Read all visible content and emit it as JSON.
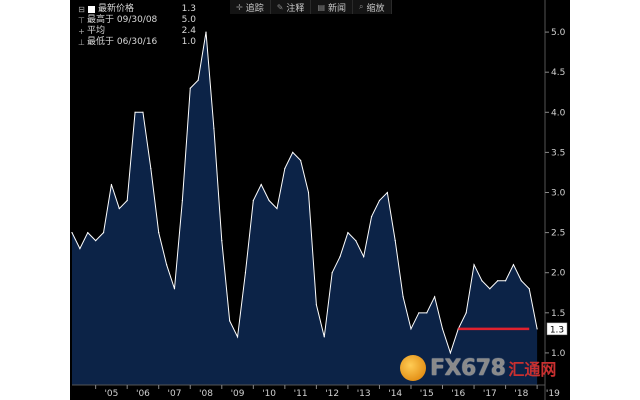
{
  "legend": {
    "latest_label": "最新价格",
    "latest_value": "1.3",
    "high_label": "最高于 09/30/08",
    "high_value": "5.0",
    "avg_label": "平均",
    "avg_value": "2.4",
    "low_label": "最低于 06/30/16",
    "low_value": "1.0"
  },
  "toolbar": {
    "track_label": "追踪",
    "annotate_label": "注释",
    "news_label": "新闻",
    "zoom_label": "缩放"
  },
  "watermark": {
    "text": "FX678",
    "cn_text": "汇通网"
  },
  "colors": {
    "background": "#000000",
    "fill": "#0c2347",
    "line": "#ffffff",
    "marker": "#e0212e",
    "axis_text": "#d0d0d0"
  },
  "chart_data": {
    "type": "area",
    "x_ticks": [
      "'05",
      "'06",
      "'07",
      "'08",
      "'09",
      "'10",
      "'11",
      "'12",
      "'13",
      "'14",
      "'15",
      "'16",
      "'17",
      "'18",
      "'19"
    ],
    "y_ticks": [
      1.0,
      1.5,
      2.0,
      2.5,
      3.0,
      3.5,
      4.0,
      4.5,
      5.0
    ],
    "ylim": [
      0.6,
      5.4
    ],
    "xlim": [
      2004.25,
      2019.25
    ],
    "grid": false,
    "last_value_label": "1.3",
    "x": [
      2004.25,
      2004.5,
      2004.75,
      2005.0,
      2005.25,
      2005.5,
      2005.75,
      2006.0,
      2006.25,
      2006.5,
      2006.75,
      2007.0,
      2007.25,
      2007.5,
      2007.75,
      2008.0,
      2008.25,
      2008.5,
      2008.75,
      2009.0,
      2009.25,
      2009.5,
      2009.75,
      2010.0,
      2010.25,
      2010.5,
      2010.75,
      2011.0,
      2011.25,
      2011.5,
      2011.75,
      2012.0,
      2012.25,
      2012.5,
      2012.75,
      2013.0,
      2013.25,
      2013.5,
      2013.75,
      2014.0,
      2014.25,
      2014.5,
      2014.75,
      2015.0,
      2015.25,
      2015.5,
      2015.75,
      2016.0,
      2016.25,
      2016.5,
      2016.75,
      2017.0,
      2017.25,
      2017.5,
      2017.75,
      2018.0,
      2018.25,
      2018.5,
      2018.75,
      2019.0
    ],
    "values": [
      2.5,
      2.3,
      2.5,
      2.4,
      2.5,
      3.1,
      2.8,
      2.9,
      4.0,
      4.0,
      3.3,
      2.5,
      2.1,
      1.8,
      2.9,
      4.3,
      4.4,
      5.0,
      3.8,
      2.4,
      1.4,
      1.2,
      2.0,
      2.9,
      3.1,
      2.9,
      2.8,
      3.3,
      3.5,
      3.4,
      3.0,
      1.6,
      1.2,
      2.0,
      2.2,
      2.5,
      2.4,
      2.2,
      2.7,
      2.9,
      3.0,
      2.4,
      1.7,
      1.3,
      1.5,
      1.5,
      1.7,
      1.3,
      1.0,
      1.3,
      1.5,
      2.1,
      1.9,
      1.8,
      1.9,
      1.9,
      2.1,
      1.9,
      1.8,
      1.3
    ],
    "reference_line": {
      "from": 2016.5,
      "to": 2018.75,
      "value": 1.3
    }
  }
}
